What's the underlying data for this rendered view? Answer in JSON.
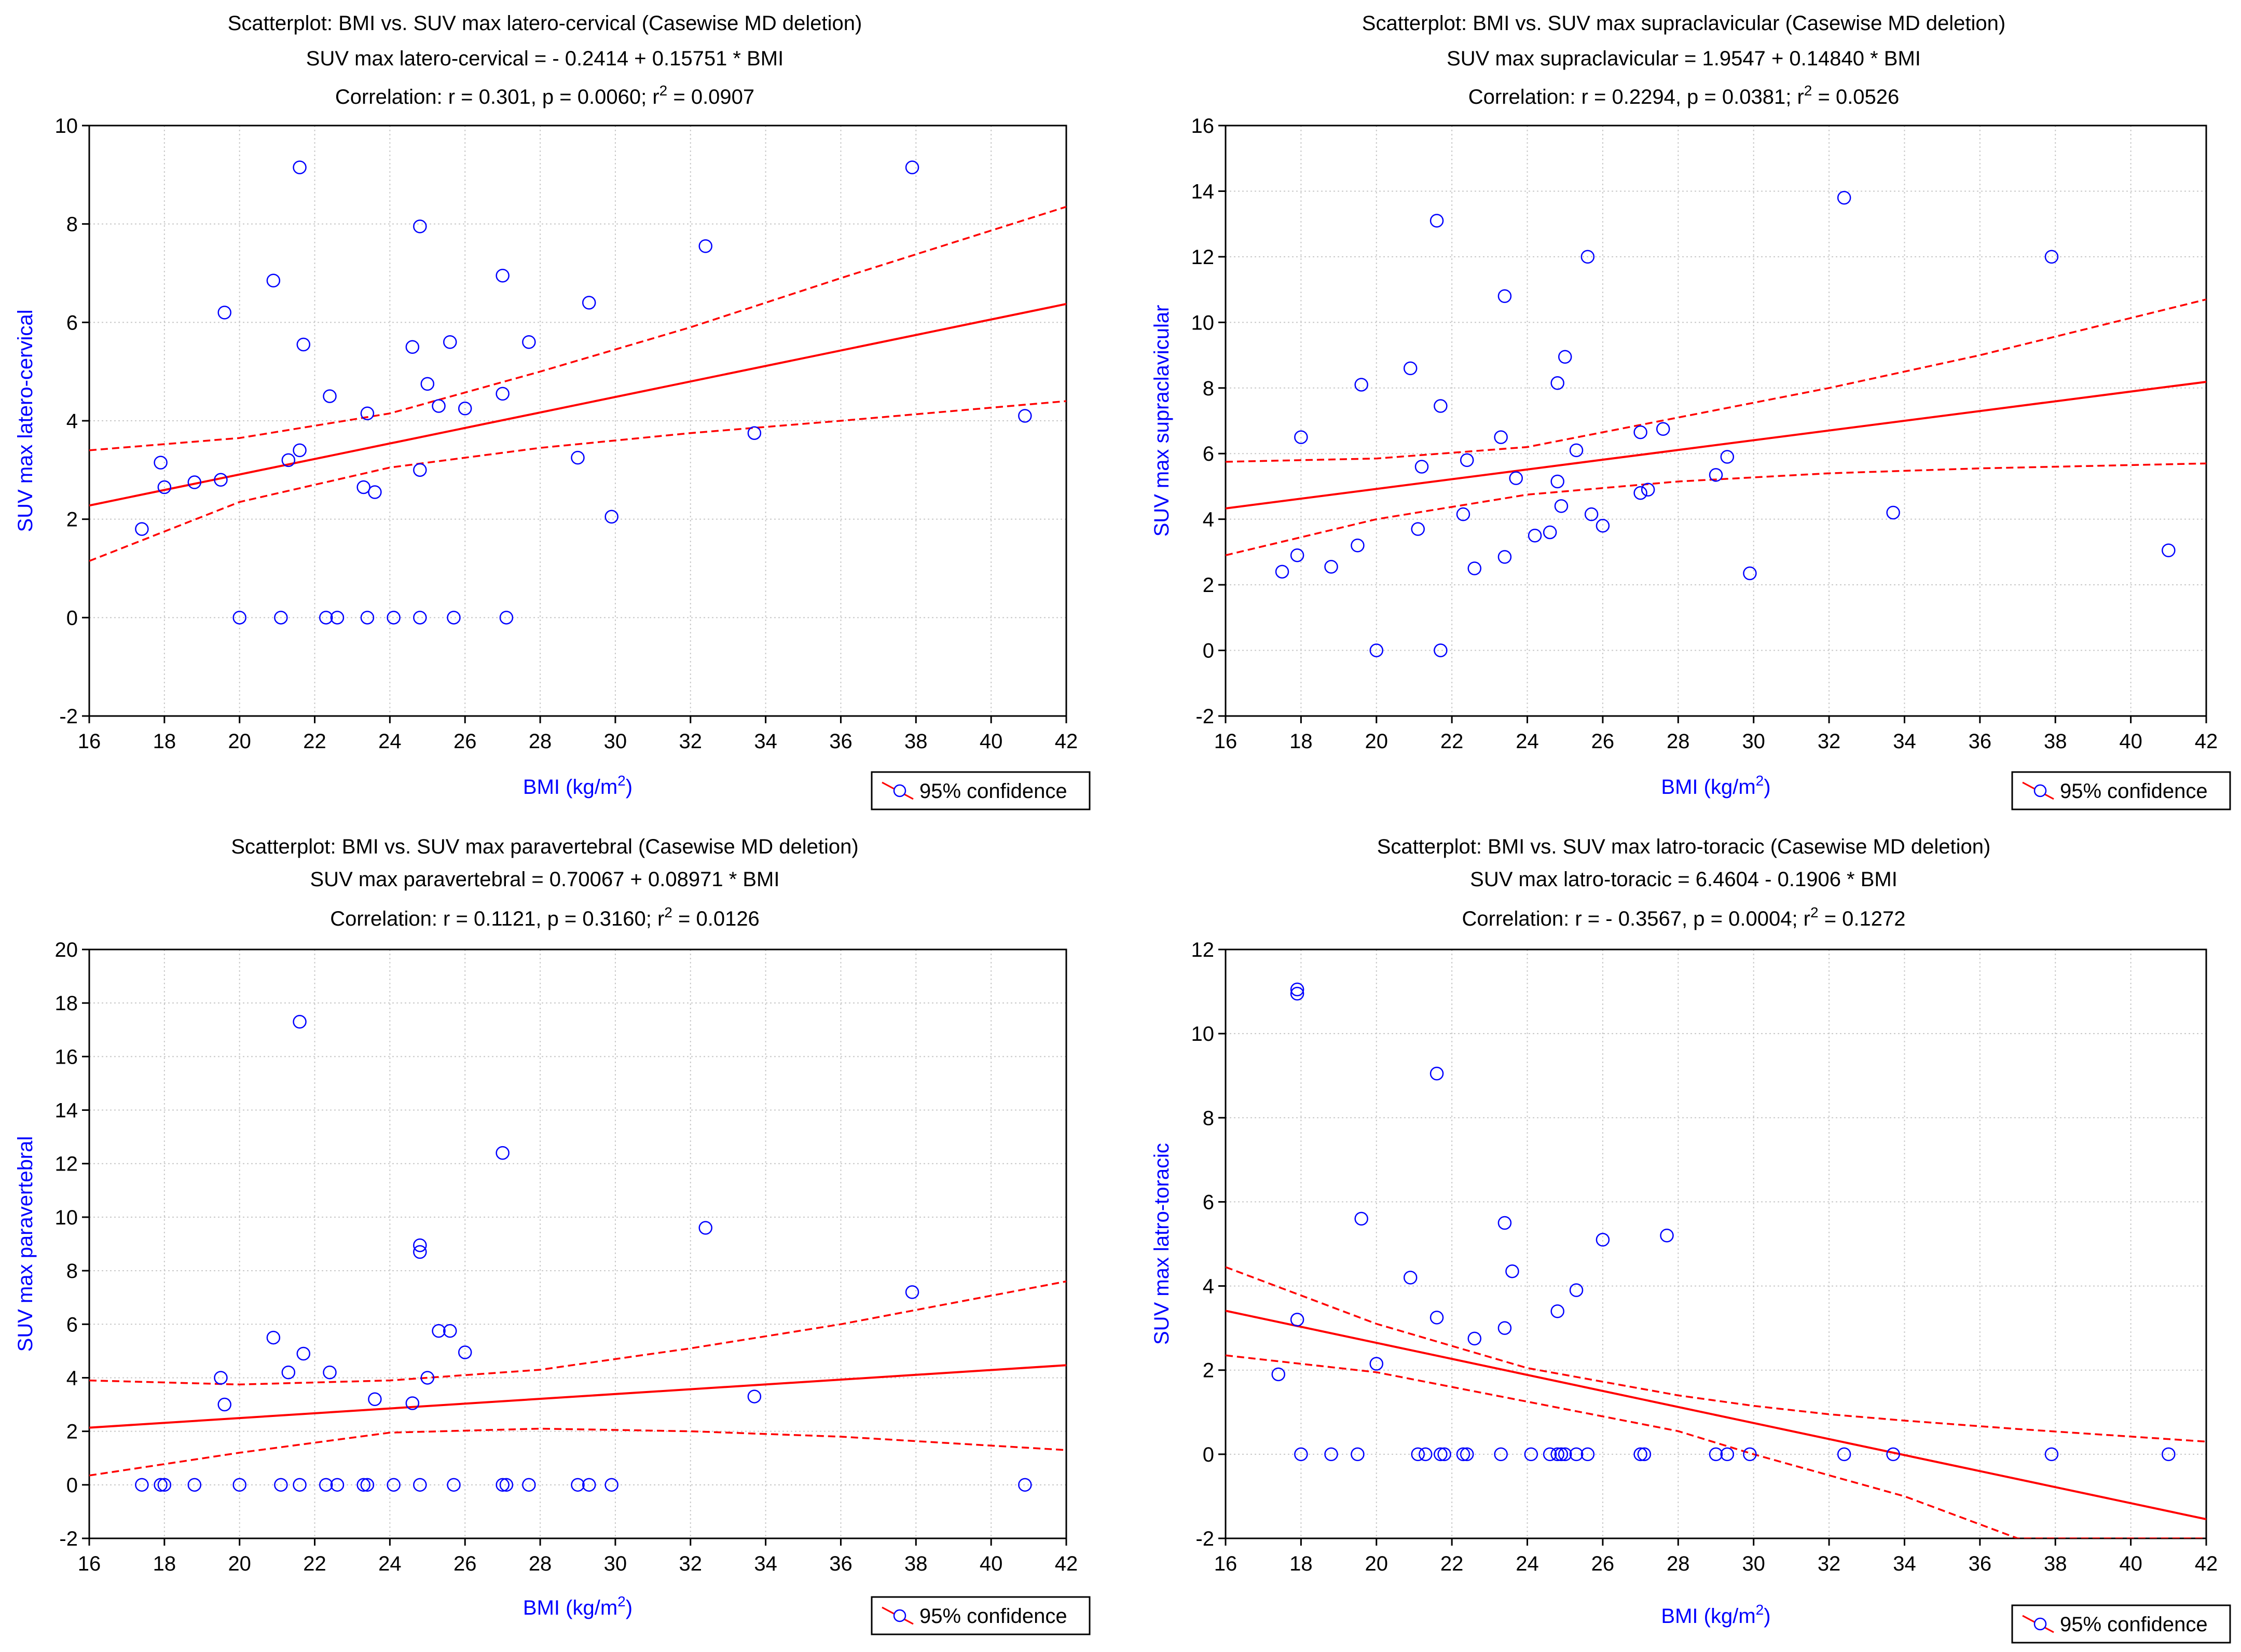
{
  "colors": {
    "points": "#0000ff",
    "fit": "#ff0000",
    "grid": "#c8c8c8",
    "axis_label": "#0000ff"
  },
  "chart_data": [
    {
      "type": "scatter",
      "title": "Scatterplot: BMI vs. SUV max latero-cervical (Casewise MD deletion)",
      "equation": "SUV max latero-cervical = - 0.2414 + 0.15751 * BMI",
      "correlation": "Correlation: r = 0.301, p = 0.0060; r",
      "correlation_sup": "2",
      "correlation_tail": " = 0.0907",
      "xlabel": "BMI (kg/m",
      "xlabel_sup": "2",
      "xlabel_tail": ")",
      "ylabel": "SUV max latero-cervical",
      "xlim": [
        16,
        42
      ],
      "ylim": [
        -2,
        10
      ],
      "xticks": [
        16,
        18,
        20,
        22,
        24,
        26,
        28,
        30,
        32,
        34,
        36,
        38,
        40,
        42
      ],
      "yticks": [
        -2,
        0,
        2,
        4,
        6,
        8,
        10
      ],
      "legend": "95% confidence",
      "regression": {
        "intercept": -0.2414,
        "slope": 0.15751
      },
      "confidence_band": {
        "x": [
          16,
          20,
          24,
          28,
          32,
          36,
          42
        ],
        "upper": [
          3.4,
          3.65,
          4.15,
          5.0,
          5.9,
          6.9,
          8.35
        ],
        "lower": [
          1.15,
          2.35,
          3.05,
          3.45,
          3.75,
          4.0,
          4.4
        ]
      },
      "points": [
        [
          17.4,
          1.8
        ],
        [
          17.9,
          3.15
        ],
        [
          18.0,
          2.65
        ],
        [
          18.8,
          2.75
        ],
        [
          19.5,
          2.8
        ],
        [
          19.6,
          6.2
        ],
        [
          20.0,
          0.0
        ],
        [
          20.9,
          6.85
        ],
        [
          21.1,
          0.0
        ],
        [
          21.3,
          3.2
        ],
        [
          21.6,
          9.15
        ],
        [
          21.6,
          3.4
        ],
        [
          21.7,
          5.55
        ],
        [
          22.3,
          0.0
        ],
        [
          22.4,
          4.5
        ],
        [
          22.6,
          0.0
        ],
        [
          23.3,
          2.65
        ],
        [
          23.4,
          4.15
        ],
        [
          23.4,
          0.0
        ],
        [
          23.6,
          2.55
        ],
        [
          24.1,
          0.0
        ],
        [
          24.6,
          5.5
        ],
        [
          24.8,
          7.95
        ],
        [
          24.8,
          0.0
        ],
        [
          24.8,
          3.0
        ],
        [
          25.0,
          4.75
        ],
        [
          25.3,
          4.3
        ],
        [
          25.6,
          5.6
        ],
        [
          25.7,
          0.0
        ],
        [
          26.0,
          4.25
        ],
        [
          27.0,
          6.95
        ],
        [
          27.0,
          4.55
        ],
        [
          27.1,
          0.0
        ],
        [
          27.7,
          5.6
        ],
        [
          29.0,
          3.25
        ],
        [
          29.3,
          6.4
        ],
        [
          29.9,
          2.05
        ],
        [
          32.4,
          7.55
        ],
        [
          33.7,
          3.75
        ],
        [
          37.9,
          9.15
        ],
        [
          40.9,
          4.1
        ]
      ]
    },
    {
      "type": "scatter",
      "title": "Scatterplot: BMI vs. SUV max supraclavicular (Casewise MD deletion)",
      "equation": "SUV max supraclavicular = 1.9547 + 0.14840 * BMI",
      "correlation": "Correlation: r = 0.2294, p = 0.0381; r",
      "correlation_sup": "2",
      "correlation_tail": " = 0.0526",
      "xlabel": "BMI (kg/m",
      "xlabel_sup": "2",
      "xlabel_tail": ")",
      "ylabel": "SUV max supraclavicular",
      "xlim": [
        16,
        42
      ],
      "ylim": [
        -2,
        16
      ],
      "xticks": [
        16,
        18,
        20,
        22,
        24,
        26,
        28,
        30,
        32,
        34,
        36,
        38,
        40,
        42
      ],
      "yticks": [
        -2,
        0,
        2,
        4,
        6,
        8,
        10,
        12,
        14,
        16
      ],
      "legend": "95% confidence",
      "regression": {
        "intercept": 1.9547,
        "slope": 0.1484
      },
      "confidence_band": {
        "x": [
          16,
          20,
          24,
          28,
          32,
          36,
          42
        ],
        "upper": [
          5.75,
          5.85,
          6.2,
          7.1,
          8.0,
          9.0,
          10.7
        ],
        "lower": [
          2.9,
          4.0,
          4.75,
          5.15,
          5.4,
          5.55,
          5.7
        ]
      },
      "points": [
        [
          17.5,
          2.4
        ],
        [
          17.9,
          2.9
        ],
        [
          18.0,
          6.5
        ],
        [
          18.8,
          2.55
        ],
        [
          19.5,
          3.2
        ],
        [
          19.6,
          8.1
        ],
        [
          20.0,
          0.0
        ],
        [
          20.9,
          8.6
        ],
        [
          21.1,
          3.7
        ],
        [
          21.2,
          5.6
        ],
        [
          21.6,
          13.1
        ],
        [
          21.7,
          7.45
        ],
        [
          21.7,
          0.0
        ],
        [
          22.3,
          4.15
        ],
        [
          22.4,
          5.8
        ],
        [
          22.6,
          2.5
        ],
        [
          23.3,
          6.5
        ],
        [
          23.4,
          10.8
        ],
        [
          23.4,
          2.85
        ],
        [
          23.7,
          5.25
        ],
        [
          24.2,
          3.5
        ],
        [
          24.6,
          3.6
        ],
        [
          24.8,
          8.15
        ],
        [
          24.8,
          5.15
        ],
        [
          24.9,
          4.4
        ],
        [
          25.0,
          8.95
        ],
        [
          25.3,
          6.1
        ],
        [
          25.6,
          12.0
        ],
        [
          25.7,
          4.15
        ],
        [
          26.0,
          3.8
        ],
        [
          27.0,
          6.65
        ],
        [
          27.0,
          4.8
        ],
        [
          27.2,
          4.9
        ],
        [
          27.6,
          6.75
        ],
        [
          29.0,
          5.35
        ],
        [
          29.3,
          5.9
        ],
        [
          29.9,
          2.35
        ],
        [
          32.4,
          13.8
        ],
        [
          33.7,
          4.2
        ],
        [
          37.9,
          12.0
        ],
        [
          41.0,
          3.05
        ]
      ]
    },
    {
      "type": "scatter",
      "title": "Scatterplot: BMI vs. SUV max paravertebral (Casewise MD deletion)",
      "equation": "SUV max paravertebral = 0.70067 + 0.08971 * BMI",
      "correlation": "Correlation: r = 0.1121, p = 0.3160; r",
      "correlation_sup": "2",
      "correlation_tail": " = 0.0126",
      "xlabel": "BMI (kg/m",
      "xlabel_sup": "2",
      "xlabel_tail": ")",
      "ylabel": "SUV max paravertebral",
      "xlim": [
        16,
        42
      ],
      "ylim": [
        -2,
        20
      ],
      "xticks": [
        16,
        18,
        20,
        22,
        24,
        26,
        28,
        30,
        32,
        34,
        36,
        38,
        40,
        42
      ],
      "yticks": [
        -2,
        0,
        2,
        4,
        6,
        8,
        10,
        12,
        14,
        16,
        18,
        20
      ],
      "legend": "95% confidence",
      "regression": {
        "intercept": 0.70067,
        "slope": 0.08971
      },
      "confidence_band": {
        "x": [
          16,
          20,
          24,
          28,
          32,
          36,
          42
        ],
        "upper": [
          3.9,
          3.75,
          3.9,
          4.3,
          5.1,
          6.0,
          7.6
        ],
        "lower": [
          0.35,
          1.2,
          1.95,
          2.1,
          2.0,
          1.8,
          1.3
        ]
      },
      "points": [
        [
          17.4,
          0.0
        ],
        [
          17.9,
          0.0
        ],
        [
          18.0,
          0.0
        ],
        [
          18.8,
          0.0
        ],
        [
          19.5,
          4.0
        ],
        [
          19.6,
          3.0
        ],
        [
          20.0,
          0.0
        ],
        [
          20.9,
          5.5
        ],
        [
          21.1,
          0.0
        ],
        [
          21.3,
          4.2
        ],
        [
          21.6,
          17.3
        ],
        [
          21.6,
          0.0
        ],
        [
          21.7,
          4.9
        ],
        [
          22.3,
          0.0
        ],
        [
          22.4,
          4.2
        ],
        [
          22.6,
          0.0
        ],
        [
          23.3,
          0.0
        ],
        [
          23.4,
          0.0
        ],
        [
          23.6,
          3.2
        ],
        [
          24.1,
          0.0
        ],
        [
          24.6,
          3.05
        ],
        [
          24.8,
          8.95
        ],
        [
          24.8,
          8.7
        ],
        [
          24.8,
          0.0
        ],
        [
          25.0,
          4.0
        ],
        [
          25.3,
          5.75
        ],
        [
          25.6,
          5.75
        ],
        [
          25.7,
          0.0
        ],
        [
          26.0,
          4.95
        ],
        [
          27.0,
          12.4
        ],
        [
          27.0,
          0.0
        ],
        [
          27.1,
          0.0
        ],
        [
          27.7,
          0.0
        ],
        [
          29.0,
          0.0
        ],
        [
          29.3,
          0.0
        ],
        [
          29.9,
          0.0
        ],
        [
          32.4,
          9.6
        ],
        [
          33.7,
          3.3
        ],
        [
          37.9,
          7.2
        ],
        [
          40.9,
          0.0
        ]
      ]
    },
    {
      "type": "scatter",
      "title": "Scatterplot: BMI vs. SUV max latro-toracic (Casewise MD deletion)",
      "equation": "SUV max latro-toracic = 6.4604 - 0.1906  * BMI",
      "correlation": "Correlation: r = - 0.3567, p = 0.0004; r",
      "correlation_sup": "2",
      "correlation_tail": " = 0.1272",
      "xlabel": "BMI (kg/m",
      "xlabel_sup": "2",
      "xlabel_tail": ")",
      "ylabel": "SUV max latro-toracic",
      "xlim": [
        16,
        42
      ],
      "ylim": [
        -2,
        12
      ],
      "xticks": [
        16,
        18,
        20,
        22,
        24,
        26,
        28,
        30,
        32,
        34,
        36,
        38,
        40,
        42
      ],
      "yticks": [
        -2,
        0,
        2,
        4,
        6,
        8,
        10,
        12
      ],
      "legend": "95% confidence",
      "regression": {
        "intercept": 6.4604,
        "slope": -0.1906
      },
      "confidence_band": {
        "x": [
          16,
          20,
          24,
          28,
          30,
          32,
          34,
          37,
          42
        ],
        "upper": [
          4.45,
          3.1,
          2.05,
          1.4,
          1.15,
          0.95,
          0.8,
          0.6,
          0.3
        ],
        "lower": [
          2.35,
          1.95,
          1.25,
          0.55,
          0.0,
          -0.5,
          -1.0,
          -2.0,
          -2.0
        ]
      },
      "points": [
        [
          17.4,
          1.9
        ],
        [
          17.9,
          11.05
        ],
        [
          17.9,
          10.95
        ],
        [
          17.9,
          3.2
        ],
        [
          18.0,
          0.0
        ],
        [
          18.8,
          0.0
        ],
        [
          19.5,
          0.0
        ],
        [
          19.6,
          5.6
        ],
        [
          20.0,
          2.15
        ],
        [
          20.9,
          4.2
        ],
        [
          21.1,
          0.0
        ],
        [
          21.3,
          0.0
        ],
        [
          21.6,
          9.05
        ],
        [
          21.6,
          3.25
        ],
        [
          21.7,
          0.0
        ],
        [
          21.8,
          0.0
        ],
        [
          22.3,
          0.0
        ],
        [
          22.4,
          0.0
        ],
        [
          22.6,
          2.75
        ],
        [
          23.3,
          0.0
        ],
        [
          23.4,
          5.5
        ],
        [
          23.4,
          3.0
        ],
        [
          23.6,
          4.35
        ],
        [
          24.1,
          0.0
        ],
        [
          24.6,
          0.0
        ],
        [
          24.8,
          3.4
        ],
        [
          24.8,
          0.0
        ],
        [
          24.9,
          0.0
        ],
        [
          25.0,
          0.0
        ],
        [
          25.3,
          3.9
        ],
        [
          25.3,
          0.0
        ],
        [
          25.6,
          0.0
        ],
        [
          26.0,
          5.1
        ],
        [
          27.0,
          0.0
        ],
        [
          27.1,
          0.0
        ],
        [
          27.7,
          5.2
        ],
        [
          29.0,
          0.0
        ],
        [
          29.3,
          0.0
        ],
        [
          29.9,
          0.0
        ],
        [
          32.4,
          0.0
        ],
        [
          33.7,
          0.0
        ],
        [
          37.9,
          0.0
        ],
        [
          41.0,
          0.0
        ]
      ]
    }
  ]
}
